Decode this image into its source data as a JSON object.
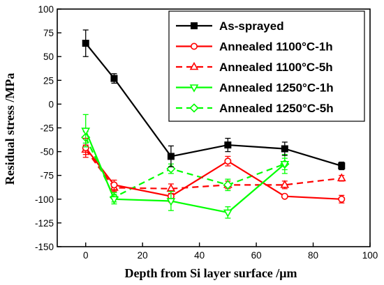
{
  "chart_data": {
    "type": "line",
    "title": "",
    "xlabel": "Depth from Si layer surface /μm",
    "ylabel": "Residual stress /MPa",
    "xlim": [
      -10,
      100
    ],
    "ylim": [
      -150,
      100
    ],
    "xticks": [
      0,
      20,
      40,
      60,
      80,
      100
    ],
    "yticks": [
      100,
      75,
      50,
      25,
      0,
      -25,
      -50,
      -75,
      -100,
      -125,
      -150
    ],
    "grid": false,
    "legend_position": "top-right",
    "series": [
      {
        "name": "As-sprayed",
        "color": "#000000",
        "line_style": "solid",
        "marker": "filled-square",
        "x": [
          0,
          10,
          30,
          50,
          70,
          90
        ],
        "y": [
          64,
          27,
          -55,
          -43,
          -47,
          -65
        ],
        "error": [
          14,
          5,
          11,
          7,
          7,
          4
        ]
      },
      {
        "name": "Annealed 1100°C-1h",
        "color": "#ff0000",
        "line_style": "solid",
        "marker": "open-circle",
        "x": [
          0,
          10,
          30,
          50,
          70,
          90
        ],
        "y": [
          -46,
          -85,
          -97,
          -60,
          -97,
          -100
        ],
        "error": [
          10,
          5,
          6,
          5,
          0,
          4
        ]
      },
      {
        "name": "Annealed 1100°C-5h",
        "color": "#ff0000",
        "line_style": "dashed",
        "marker": "open-triangle-up",
        "x": [
          0,
          10,
          30,
          50,
          70,
          90
        ],
        "y": [
          -48,
          -88,
          -89,
          -85,
          -85,
          -78
        ],
        "error": [
          5,
          4,
          5,
          4,
          4,
          3
        ]
      },
      {
        "name": "Annealed 1250°C-1h",
        "color": "#00ff00",
        "line_style": "solid",
        "marker": "open-triangle-down",
        "x": [
          0,
          10,
          30,
          50,
          70
        ],
        "y": [
          -28,
          -100,
          -102,
          -114,
          -63
        ],
        "error": [
          17,
          5,
          10,
          6,
          10
        ]
      },
      {
        "name": "Annealed 1250°C-5h",
        "color": "#00ff00",
        "line_style": "dashed",
        "marker": "open-diamond",
        "x": [
          0,
          10,
          30,
          50,
          70
        ],
        "y": [
          -35,
          -98,
          -68,
          -85,
          -63
        ],
        "error": [
          6,
          5,
          5,
          6,
          6
        ]
      }
    ]
  }
}
